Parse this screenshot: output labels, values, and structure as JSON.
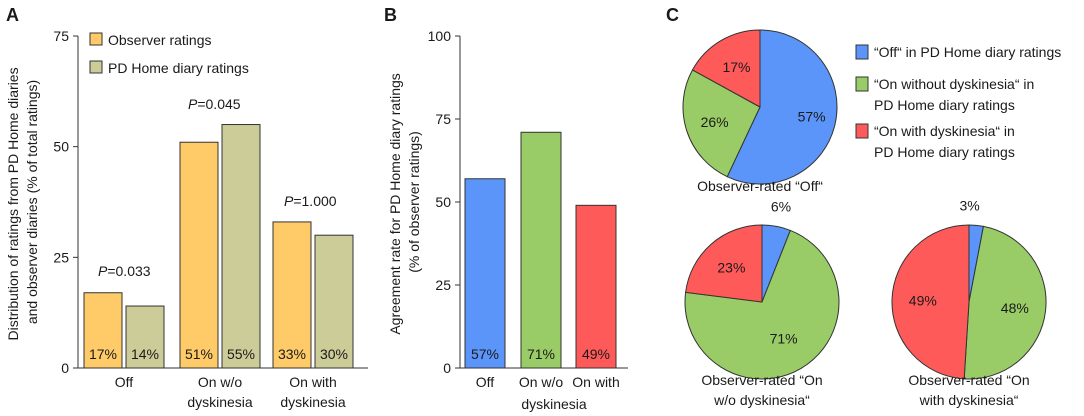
{
  "panels": {
    "a": "A",
    "b": "B",
    "c": "C"
  },
  "colors": {
    "observer": "#ffca68",
    "diary": "#cccc99",
    "off": "#5b95f9",
    "on_without": "#99cc66",
    "on_with": "#ff5a5a",
    "stroke": "#333333"
  },
  "chart_data": [
    {
      "id": "A",
      "type": "bar",
      "ylabel": "Distribution of ratings from PD Home diaries and observer diaries (% of total ratings)",
      "ylabel_lines": [
        "Distribution of ratings from PD Home diaries",
        "and observer diaries (% of total ratings)"
      ],
      "ylim": [
        0,
        75
      ],
      "yticks": [
        0,
        25,
        50,
        75
      ],
      "categories": [
        [
          "Off"
        ],
        [
          "On w/o",
          "dyskinesia"
        ],
        [
          "On with",
          "dyskinesia"
        ]
      ],
      "series": [
        {
          "name": "Observer ratings",
          "color_key": "observer",
          "values": [
            17,
            51,
            33
          ],
          "labels": [
            "17%",
            "51%",
            "33%"
          ]
        },
        {
          "name": "PD Home diary ratings",
          "color_key": "diary",
          "values": [
            14,
            55,
            30
          ],
          "labels": [
            "14%",
            "55%",
            "30%"
          ]
        }
      ],
      "annotations": [
        {
          "italic": "P",
          "rest": "=0.033"
        },
        {
          "italic": "P",
          "rest": "=0.045"
        },
        {
          "italic": "P",
          "rest": "=1.000"
        }
      ]
    },
    {
      "id": "B",
      "type": "bar",
      "ylabel": "Agreement rate for PD Home diary ratings (% of observer ratings)",
      "ylabel_lines": [
        "Agreement rate for PD Home diary ratings",
        "(% of observer ratings)"
      ],
      "ylim": [
        0,
        100
      ],
      "yticks": [
        0,
        25,
        50,
        75,
        100
      ],
      "categories": [
        [
          "Off"
        ],
        [
          "On w/o"
        ],
        [
          "On with"
        ]
      ],
      "category_sublabel": "dyskinesia",
      "values": [
        57,
        71,
        49
      ],
      "labels": [
        "57%",
        "71%",
        "49%"
      ],
      "color_keys": [
        "off",
        "on_without",
        "on_with"
      ]
    },
    {
      "id": "C",
      "type": "pie",
      "legend": [
        {
          "color_key": "off",
          "lines": [
            "“Off“ in PD Home diary ratings"
          ]
        },
        {
          "color_key": "on_without",
          "lines": [
            "“On without dyskinesia“ in",
            "PD Home diary ratings"
          ]
        },
        {
          "color_key": "on_with",
          "lines": [
            "“On with dyskinesia“ in",
            "PD Home diary ratings"
          ]
        }
      ],
      "pies": [
        {
          "title_lines": [
            "Observer-rated “Off“"
          ],
          "values": [
            57,
            26,
            17
          ],
          "labels": [
            "57%",
            "26%",
            "17%"
          ]
        },
        {
          "title_lines": [
            "Observer-rated “On",
            "w/o dyskinesia“"
          ],
          "values": [
            6,
            71,
            23
          ],
          "labels": [
            "6%",
            "71%",
            "23%"
          ]
        },
        {
          "title_lines": [
            "Observer-rated “On",
            "with dyskinesia“"
          ],
          "values": [
            3,
            48,
            49
          ],
          "labels": [
            "3%",
            "48%",
            "49%"
          ]
        }
      ]
    }
  ]
}
